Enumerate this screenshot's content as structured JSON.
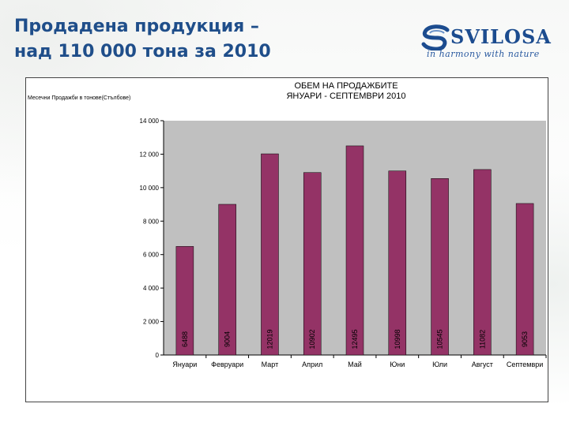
{
  "slide": {
    "title_line1": "Продадена продукция –",
    "title_line2": "над 110 000 тона за 2010"
  },
  "logo": {
    "name": "SVILOSA",
    "tagline": "in harmony with nature",
    "icon": "svilosa-logo-icon"
  },
  "chart_data": {
    "type": "bar",
    "title_line1": "ОБЕМ НА ПРОДАЖБИТЕ",
    "title_line2": "ЯНУАРИ - СЕПТЕМВРИ 2010",
    "ylabel": "Месечни Продажби в тонове(Стълбове)",
    "xlabel": "",
    "categories": [
      "Януари",
      "Февруари",
      "Март",
      "Април",
      "Май",
      "Юни",
      "Юли",
      "Август",
      "Септември"
    ],
    "values": [
      6488,
      9004,
      12019,
      10902,
      12495,
      10998,
      10545,
      11082,
      9053
    ],
    "value_labels": [
      "6488",
      "9004",
      "12019",
      "10902",
      "12495",
      "10998",
      "10545",
      "11082",
      "9053"
    ],
    "ylim": [
      0,
      14000
    ],
    "yticks": [
      0,
      2000,
      4000,
      6000,
      8000,
      10000,
      12000,
      14000
    ],
    "ytick_labels": [
      "0",
      "2 000",
      "4 000",
      "6 000",
      "8 000",
      "10 000",
      "12 000",
      "14 000"
    ],
    "grid": false,
    "legend": "none",
    "bar_color": "#943366",
    "plot_bg": "#c0c0c0"
  }
}
